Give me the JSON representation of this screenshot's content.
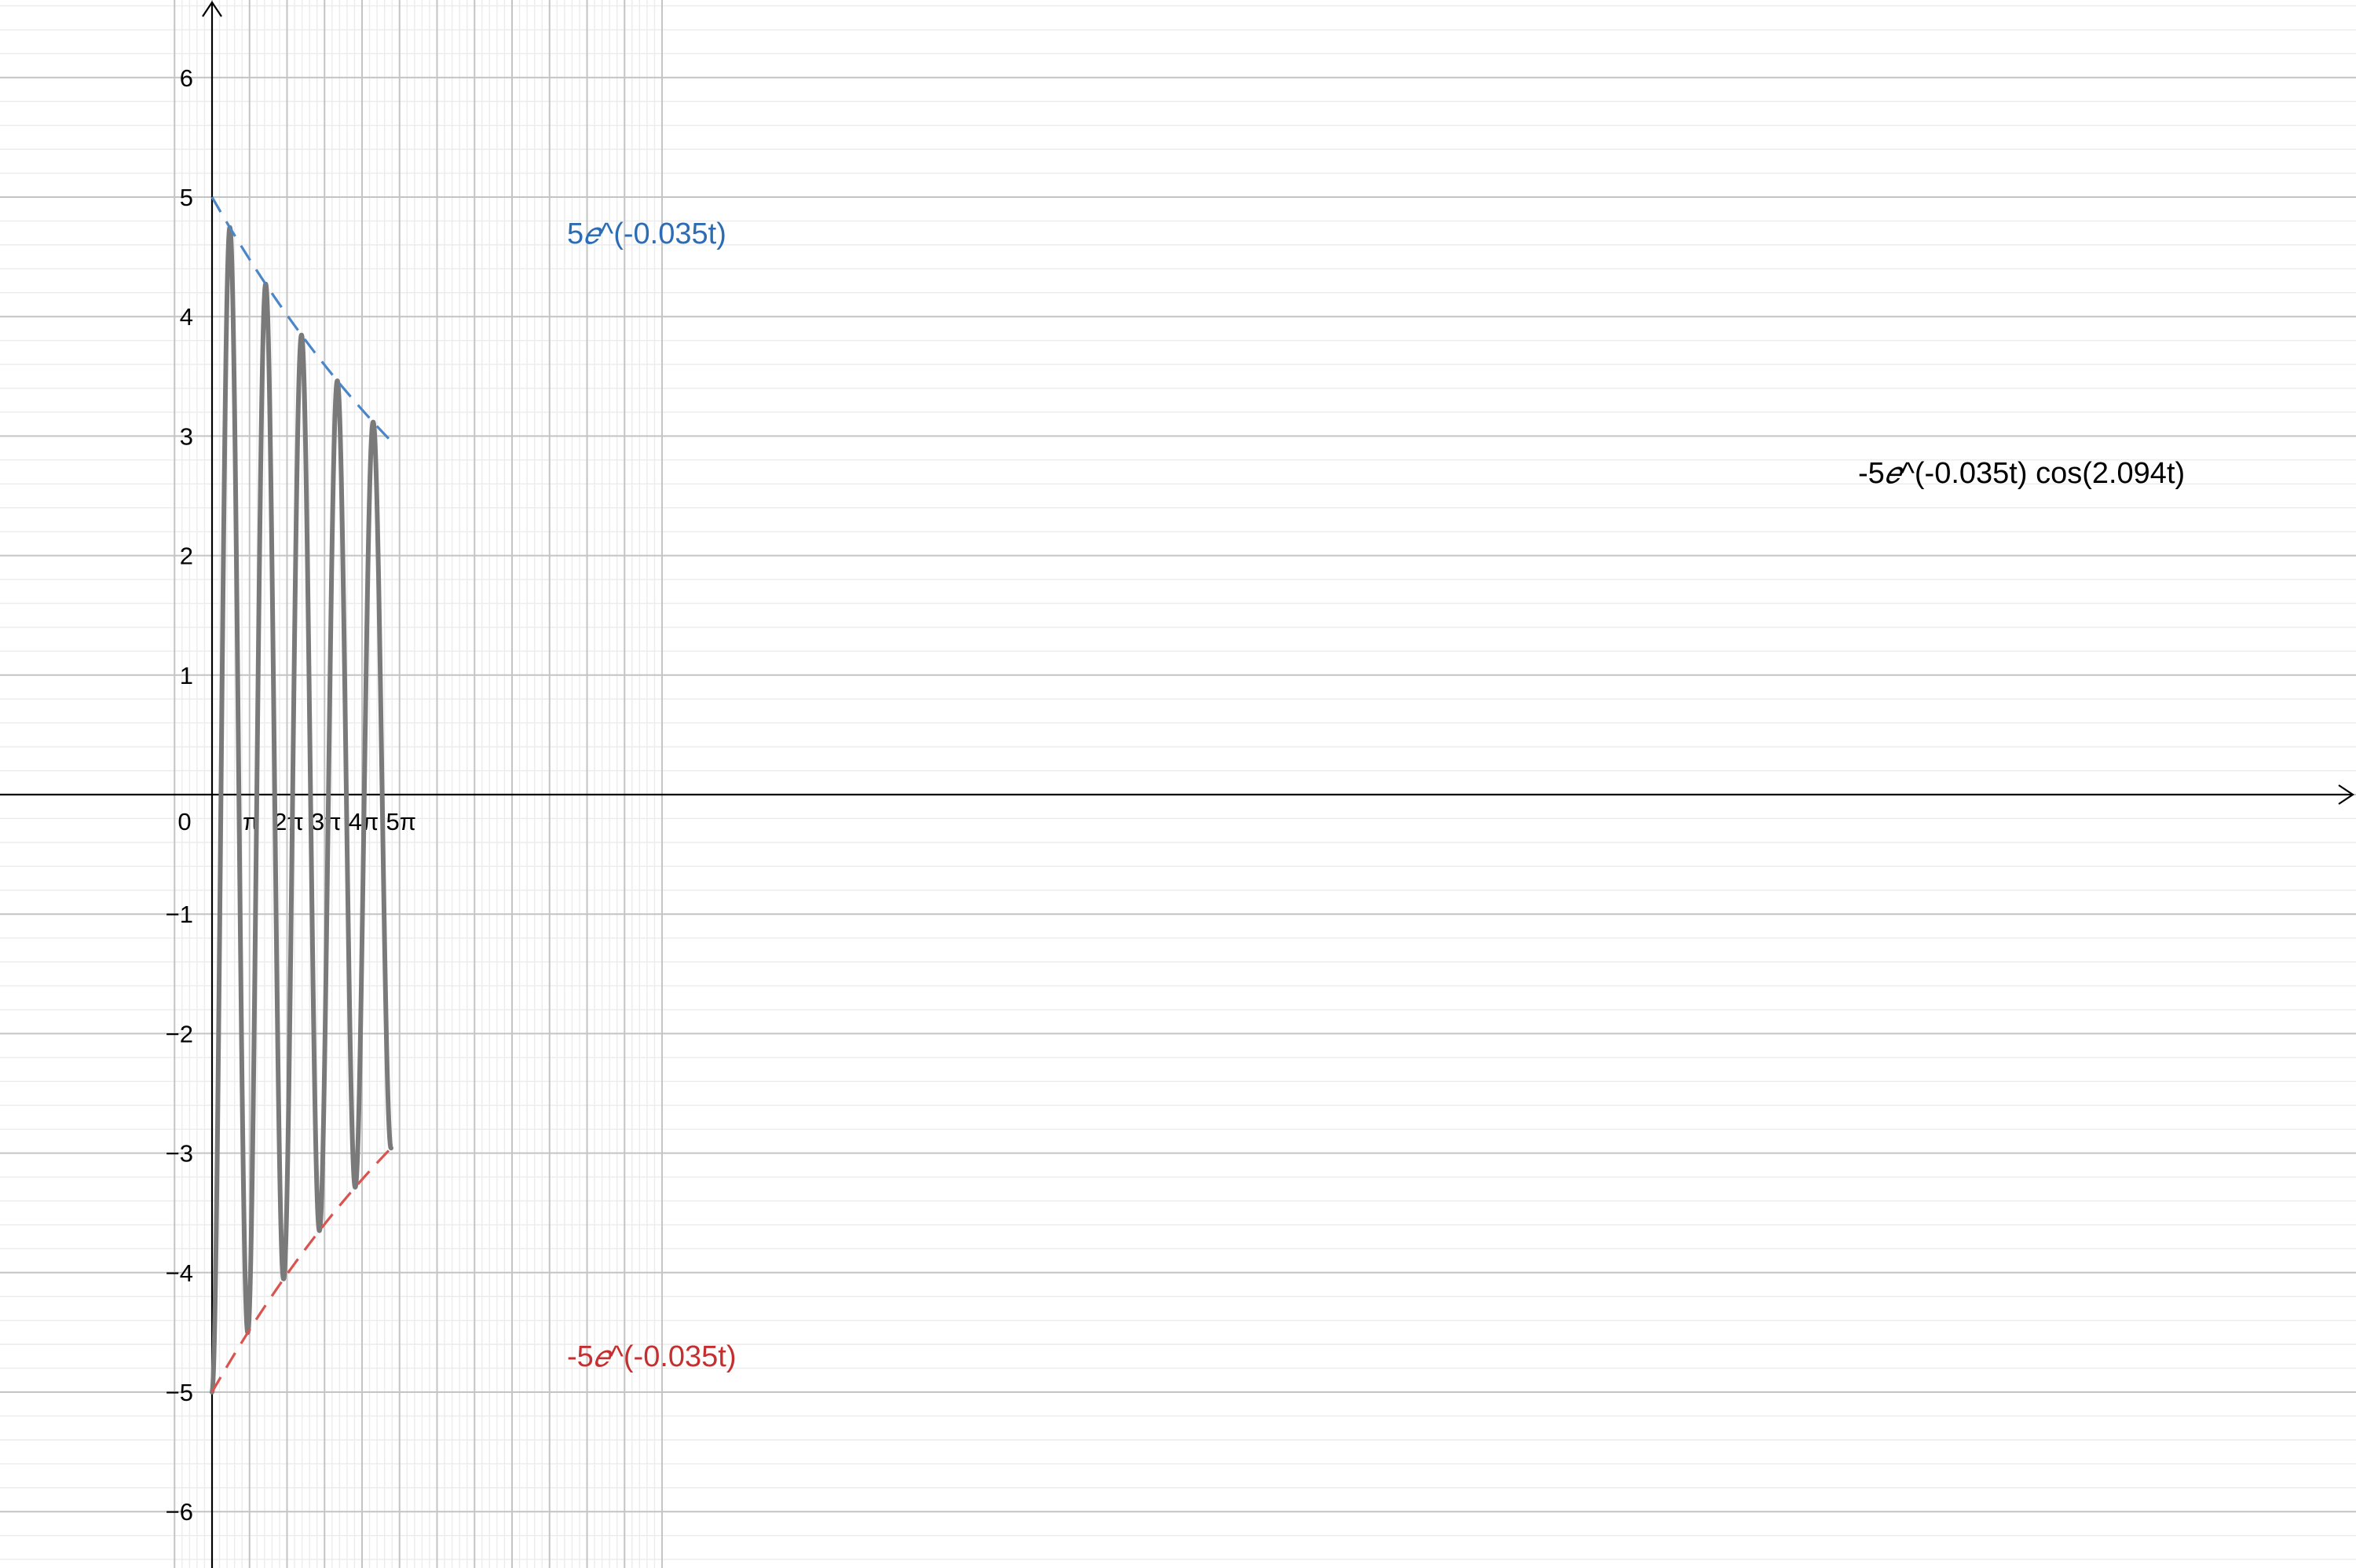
{
  "chart_data": {
    "type": "line",
    "title": "",
    "xlabel": "",
    "ylabel": "",
    "xlim": [
      -0.85,
      34.6
    ],
    "ylim": [
      -6.5,
      6.6
    ],
    "grid": true,
    "x_ticks": [
      {
        "value": 0,
        "label": "0"
      },
      {
        "value": 3.14159,
        "label": "π"
      },
      {
        "value": 6.28319,
        "label": "2π"
      },
      {
        "value": 9.42478,
        "label": "3π"
      },
      {
        "value": 12.56637,
        "label": "4π"
      },
      {
        "value": 15.70796,
        "label": "5π"
      }
    ],
    "y_ticks": [
      {
        "value": 6,
        "label": "6"
      },
      {
        "value": 5,
        "label": "5"
      },
      {
        "value": 4,
        "label": "4"
      },
      {
        "value": 3,
        "label": "3"
      },
      {
        "value": 2,
        "label": "2"
      },
      {
        "value": 1,
        "label": "1"
      },
      {
        "value": -1,
        "label": "−1"
      },
      {
        "value": -2,
        "label": "−2"
      },
      {
        "value": -3,
        "label": "−3"
      },
      {
        "value": -4,
        "label": "−4"
      },
      {
        "value": -5,
        "label": "−5"
      },
      {
        "value": -6,
        "label": "−6"
      }
    ],
    "series": [
      {
        "name": "-5𝑒^(-0.035t) cos(2.094t)",
        "label_prefix": "-5",
        "label_e": "𝑒",
        "label_suffix": "^(-0.035t) cos(2.094t)",
        "formula": {
          "amplitude": -5,
          "decay": 0.035,
          "omega": 2.094
        },
        "domain": [
          0,
          15
        ],
        "style": "solid",
        "color": "#7a7a7a"
      },
      {
        "name": "5𝑒^(-0.035t)",
        "label_prefix": "5",
        "label_e": "𝑒",
        "label_suffix": "^(-0.035t)",
        "formula": {
          "amplitude": 5,
          "decay": 0.035
        },
        "domain": [
          0,
          15
        ],
        "style": "dashed",
        "color": "#4a86c8"
      },
      {
        "name": "-5𝑒^(-0.035t)",
        "label_prefix": "-5",
        "label_e": "𝑒",
        "label_suffix": "^(-0.035t)",
        "formula": {
          "amplitude": -5,
          "decay": 0.035
        },
        "domain": [
          0,
          15
        ],
        "style": "dashed",
        "color": "#d9534f"
      }
    ],
    "colors": {
      "minor_grid": "#ececec",
      "major_grid": "#c4c4c4",
      "axis": "#000000",
      "main_curve": "#7a7a7a",
      "upper_envelope": "#4a86c8",
      "upper_label": "#2b6cb5",
      "lower_envelope": "#d9534f",
      "lower_label": "#c62f2f"
    }
  }
}
